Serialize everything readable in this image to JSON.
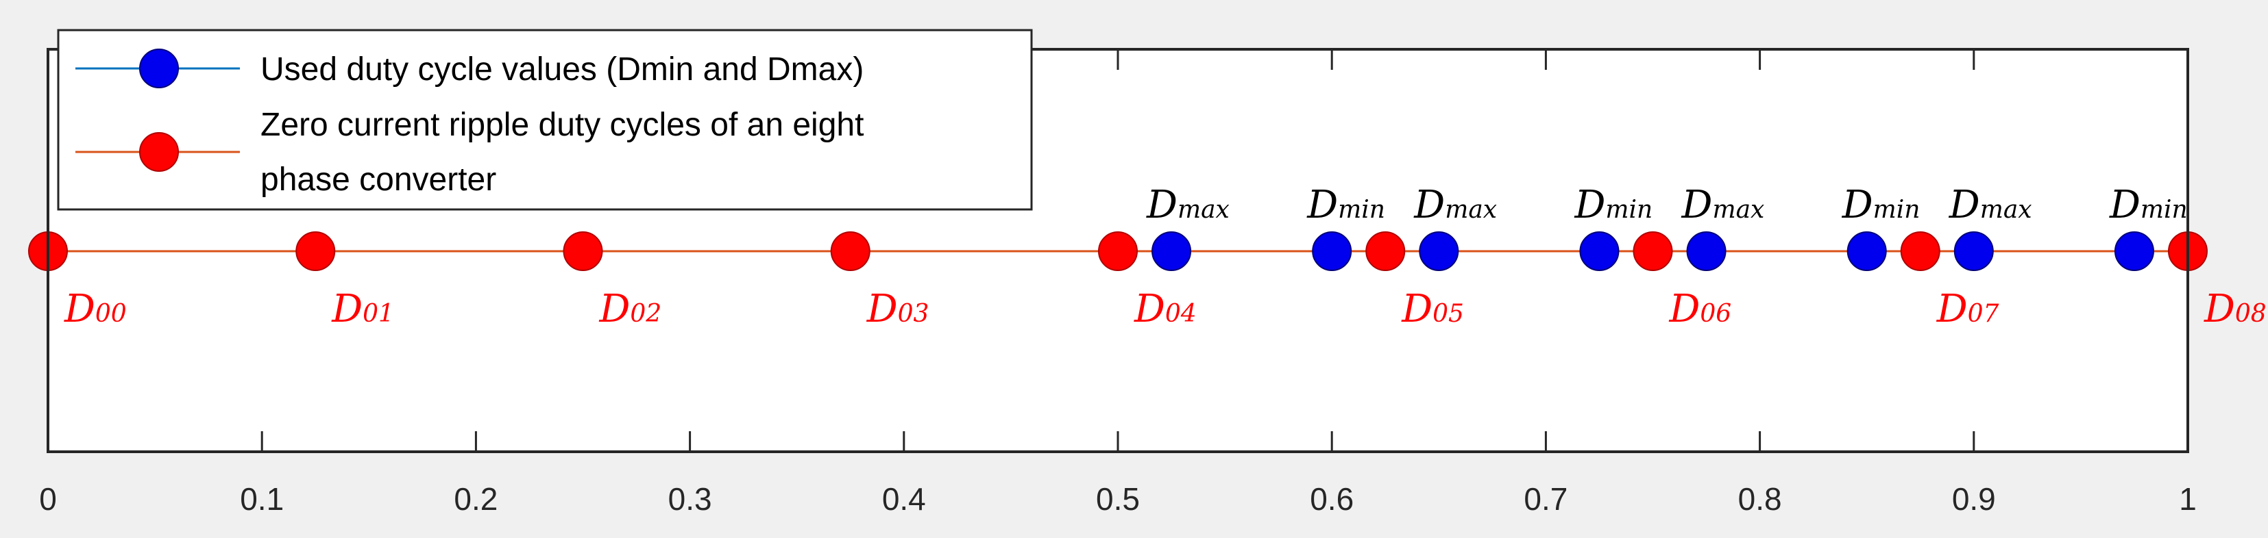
{
  "chart_data": {
    "type": "scatter",
    "xlim": [
      0,
      1
    ],
    "x_ticks": [
      "0",
      "0.1",
      "0.2",
      "0.3",
      "0.4",
      "0.5",
      "0.6",
      "0.7",
      "0.8",
      "0.9",
      "1"
    ],
    "y_ticks_visible": false,
    "grid": false,
    "legend_placement": "top-left",
    "series": [
      {
        "name": "Used duty cycle values (Dmin and Dmax)",
        "color": "#0000ee",
        "line_color": "#0072bd",
        "x": [
          0.525,
          0.6,
          0.65,
          0.725,
          0.775,
          0.85,
          0.9,
          0.975
        ]
      },
      {
        "name": "Zero current ripple duty cycles of an eight phase converter",
        "legend_lines": [
          "Zero current ripple duty cycles of an eight",
          " phase converter"
        ],
        "color": "#ff0000",
        "line_color": "#d95319",
        "x": [
          0,
          0.125,
          0.25,
          0.375,
          0.5,
          0.625,
          0.75,
          0.875,
          1
        ]
      }
    ],
    "annotations_red": [
      {
        "base": "D",
        "sub": "00",
        "x": 0
      },
      {
        "base": "D",
        "sub": "01",
        "x": 0.125
      },
      {
        "base": "D",
        "sub": "02",
        "x": 0.25
      },
      {
        "base": "D",
        "sub": "03",
        "x": 0.375
      },
      {
        "base": "D",
        "sub": "04",
        "x": 0.5
      },
      {
        "base": "D",
        "sub": "05",
        "x": 0.625
      },
      {
        "base": "D",
        "sub": "06",
        "x": 0.75
      },
      {
        "base": "D",
        "sub": "07",
        "x": 0.875
      },
      {
        "base": "D",
        "sub": "08",
        "x": 1
      }
    ],
    "annotations_black": [
      {
        "base": "D",
        "sub": "max",
        "x": 0.525
      },
      {
        "base": "D",
        "sub": "min",
        "x": 0.6
      },
      {
        "base": "D",
        "sub": "max",
        "x": 0.65
      },
      {
        "base": "D",
        "sub": "min",
        "x": 0.725
      },
      {
        "base": "D",
        "sub": "max",
        "x": 0.775
      },
      {
        "base": "D",
        "sub": "min",
        "x": 0.85
      },
      {
        "base": "D",
        "sub": "max",
        "x": 0.9
      },
      {
        "base": "D",
        "sub": "min",
        "x": 0.975
      }
    ]
  }
}
